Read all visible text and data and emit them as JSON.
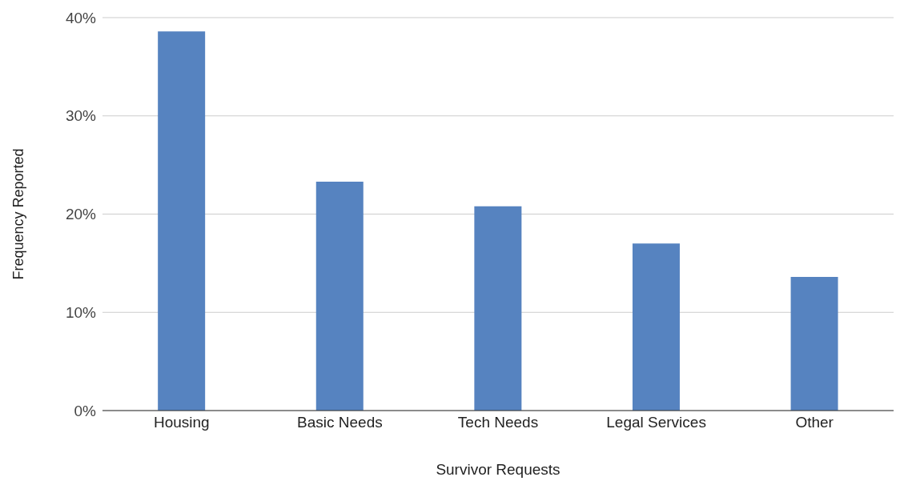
{
  "chart_data": {
    "type": "bar",
    "xlabel": "Survivor Requests",
    "ylabel": "Frequency Reported",
    "categories": [
      "Housing",
      "Basic Needs",
      "Tech Needs",
      "Legal Services",
      "Other"
    ],
    "values": [
      38.6,
      23.3,
      20.8,
      17.0,
      13.6
    ],
    "color": "#5683c0",
    "ylim": [
      0,
      40
    ],
    "yticks": [
      {
        "value": 0,
        "label": "0%"
      },
      {
        "value": 10,
        "label": "10%"
      },
      {
        "value": 20,
        "label": "20%"
      },
      {
        "value": 30,
        "label": "30%"
      },
      {
        "value": 40,
        "label": "40%"
      }
    ],
    "grid": "y"
  }
}
